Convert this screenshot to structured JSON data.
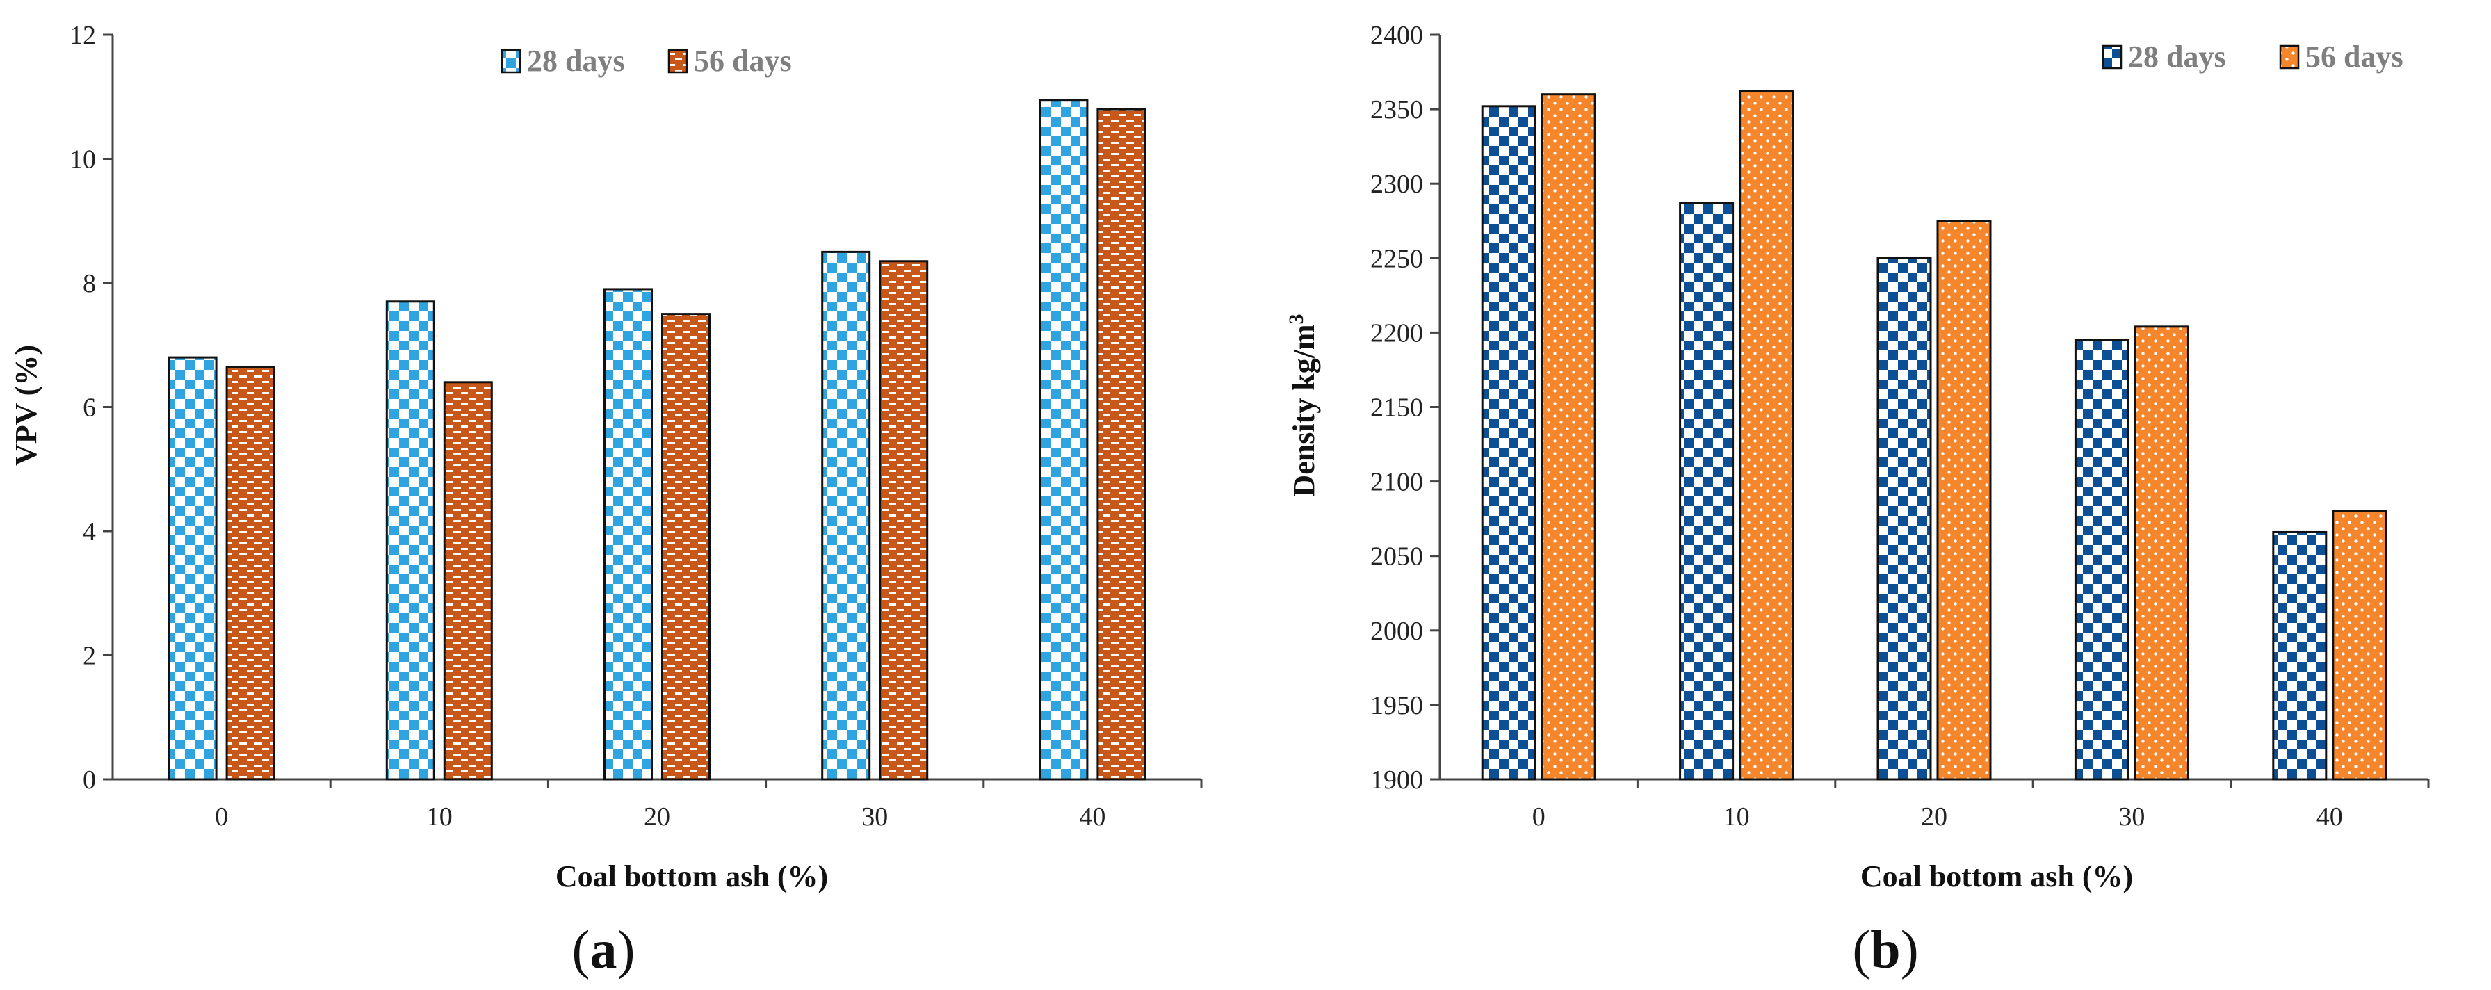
{
  "chart_data": [
    {
      "panel": "a",
      "type": "bar",
      "caption_open": "(",
      "caption_letter": "a",
      "caption_close": ")",
      "xlabel": "Coal bottom ash (%)",
      "ylabel": "VPV (%)",
      "ylim": [
        0,
        12
      ],
      "yticks": [
        "0",
        "2",
        "4",
        "6",
        "8",
        "10",
        "12"
      ],
      "categories": [
        "0",
        "10",
        "20",
        "30",
        "40"
      ],
      "legend_position": "top-center",
      "series": [
        {
          "name": "28 days",
          "values": [
            6.8,
            7.7,
            7.9,
            8.5,
            10.95
          ],
          "color": "#2fa4e0",
          "pattern": "checkerboard"
        },
        {
          "name": "56 days",
          "values": [
            6.65,
            6.4,
            7.5,
            8.35,
            10.8
          ],
          "color": "#c8581a",
          "pattern": "brick"
        }
      ]
    },
    {
      "panel": "b",
      "type": "bar",
      "caption_open": "(",
      "caption_letter": "b",
      "caption_close": ")",
      "xlabel": "Coal bottom ash (%)",
      "ylabel_main": "Density kg/m",
      "ylabel_sup": "3",
      "ylim": [
        1900,
        2400
      ],
      "yticks": [
        "1900",
        "1950",
        "2000",
        "2050",
        "2100",
        "2150",
        "2200",
        "2250",
        "2300",
        "2350",
        "2400"
      ],
      "categories": [
        "0",
        "10",
        "20",
        "30",
        "40"
      ],
      "legend_position": "top-right",
      "series": [
        {
          "name": "28 days",
          "values": [
            2352,
            2287,
            2250,
            2195,
            2066
          ],
          "color": "#0d4f94",
          "pattern": "checkerboard"
        },
        {
          "name": "56 days",
          "values": [
            2360,
            2362,
            2275,
            2204,
            2080
          ],
          "color": "#f5862b",
          "pattern": "dots"
        }
      ]
    }
  ]
}
